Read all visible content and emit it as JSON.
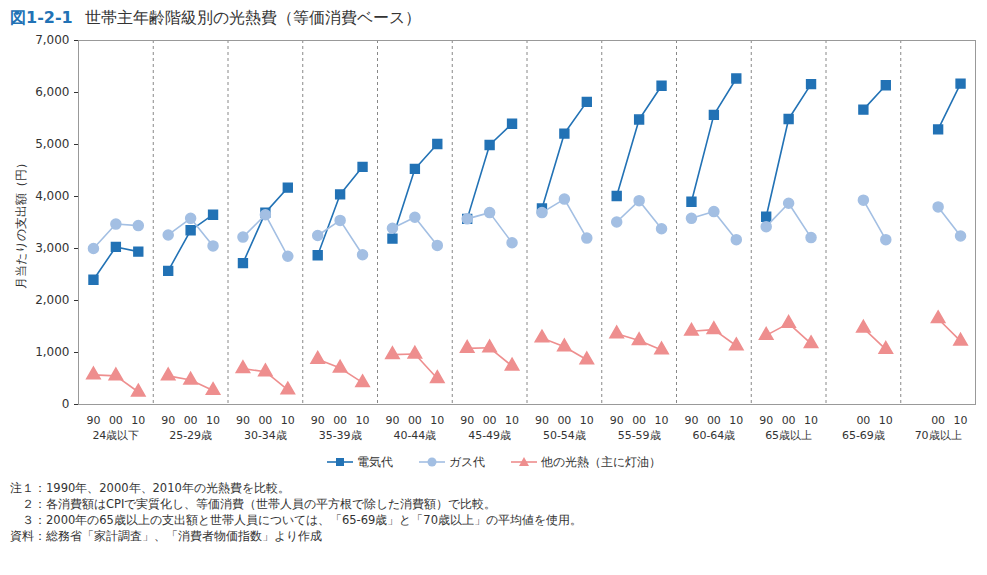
{
  "chart_data": {
    "type": "line",
    "figure_label": "図1-2-1",
    "title": "世帯主年齢階級別の光熱費（等価消費ベース）",
    "y_label": "月当たりの支出額（円）",
    "categories": [
      "24歳以下",
      "25-29歳",
      "30-34歳",
      "35-39歳",
      "40-44歳",
      "45-49歳",
      "50-54歳",
      "55-59歳",
      "60-64歳",
      "65歳以上",
      "65-69歳",
      "70歳以上"
    ],
    "x": [
      "90",
      "00",
      "10"
    ],
    "series": [
      {
        "name": "電気代",
        "color": "#2272b5",
        "marker": "square",
        "values": [
          [
            2400,
            3030,
            2940
          ],
          [
            2570,
            3350,
            3650
          ],
          [
            2720,
            3690,
            4170
          ],
          [
            2870,
            4040,
            4570
          ],
          [
            3190,
            4530,
            5010
          ],
          [
            3570,
            4990,
            5400
          ],
          [
            3770,
            5210,
            5820
          ],
          [
            4010,
            5480,
            6130
          ],
          [
            3900,
            5570,
            6270
          ],
          [
            3610,
            5490,
            6160
          ],
          [
            null,
            5670,
            6140
          ],
          [
            null,
            5290,
            6170
          ]
        ]
      },
      {
        "name": "ガス代",
        "color": "#a3bfe3",
        "marker": "circle",
        "values": [
          [
            3000,
            3470,
            3440
          ],
          [
            3260,
            3580,
            3050
          ],
          [
            3220,
            3650,
            2850
          ],
          [
            3250,
            3540,
            2880
          ],
          [
            3390,
            3600,
            3060
          ],
          [
            3570,
            3690,
            3110
          ],
          [
            3690,
            3950,
            3200
          ],
          [
            3510,
            3920,
            3380
          ],
          [
            3580,
            3710,
            3170
          ],
          [
            3420,
            3870,
            3210
          ],
          [
            null,
            3930,
            3170
          ],
          [
            null,
            3800,
            3240
          ]
        ]
      },
      {
        "name": "他の光熱（主に灯油）",
        "color": "#ee8e8e",
        "marker": "triangle",
        "values": [
          [
            570,
            550,
            240
          ],
          [
            550,
            470,
            270
          ],
          [
            690,
            630,
            280
          ],
          [
            870,
            700,
            420
          ],
          [
            960,
            970,
            500
          ],
          [
            1080,
            1090,
            740
          ],
          [
            1280,
            1110,
            860
          ],
          [
            1360,
            1230,
            1050
          ],
          [
            1410,
            1440,
            1130
          ],
          [
            1330,
            1560,
            1170
          ],
          [
            null,
            1470,
            1060
          ],
          [
            null,
            1650,
            1220
          ]
        ]
      }
    ],
    "ylim": [
      0,
      7000
    ],
    "yticks": [
      0,
      {
        "value": 1000,
        "label": "1,000"
      },
      {
        "value": 2000,
        "label": "2,000"
      },
      {
        "value": 3000,
        "label": "3,000"
      },
      {
        "value": 4000,
        "label": "4,000"
      },
      {
        "value": 5000,
        "label": "5,000"
      },
      {
        "value": 6000,
        "label": "6,000"
      },
      {
        "value": 7000,
        "label": "7,000"
      }
    ],
    "grid": false,
    "legend": "bottom",
    "notes": [
      "注１：1990年、2000年、2010年の光熱費を比較。",
      "　２：各消費額はCPIで実質化し、等価消費（世帯人員の平方根で除した消費額）で比較。",
      "　３：2000年の65歳以上の支出額と世帯人員については、「65-69歳」と「70歳以上」の平均値を使用。"
    ],
    "source": "資料：総務省「家計調査」、「消費者物価指数」より作成"
  }
}
